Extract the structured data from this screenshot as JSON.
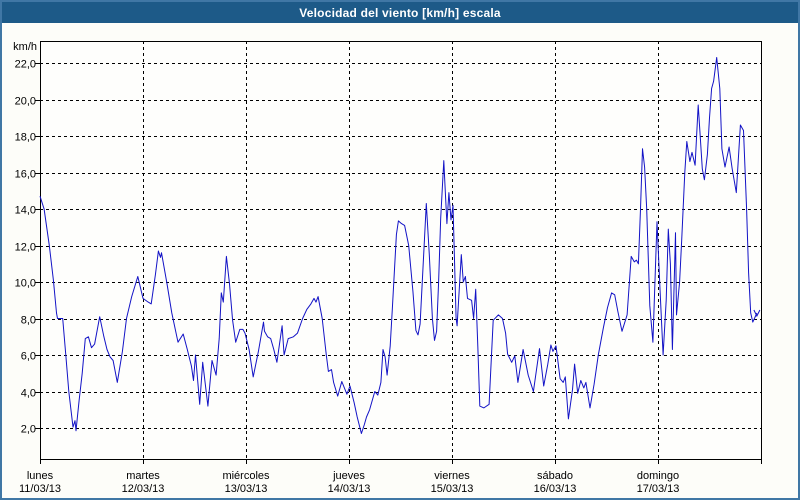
{
  "window": {
    "title": "Velocidad del viento [km/h] escala"
  },
  "colors": {
    "titlebar_bg": "#1D5A88",
    "window_border": "#4077A5",
    "content_bg": "#FDFDF9",
    "plot_bg": "#FEFEFC",
    "grid": "#000000",
    "axis": "#000000",
    "line": "#1313C6",
    "title_text": "#FFFFFF"
  },
  "chart_data": {
    "type": "line",
    "title": "Velocidad del viento [km/h] escala",
    "y_unit_label": "km/h",
    "grid": "dashed",
    "legend": "none",
    "ylim": [
      0.4,
      23.2
    ],
    "x_range_days": [
      0,
      7
    ],
    "y_ticks": [
      {
        "v": 22,
        "label": "22,0"
      },
      {
        "v": 20,
        "label": "20,0"
      },
      {
        "v": 18,
        "label": "18,0"
      },
      {
        "v": 16,
        "label": "16,0"
      },
      {
        "v": 14,
        "label": "14,0"
      },
      {
        "v": 12,
        "label": "12,0"
      },
      {
        "v": 10,
        "label": "10,0"
      },
      {
        "v": 8,
        "label": "8,0"
      },
      {
        "v": 6,
        "label": "6,0"
      },
      {
        "v": 4,
        "label": "4,0"
      },
      {
        "v": 2,
        "label": "2,0"
      }
    ],
    "x_ticks": [
      {
        "day": "lunes",
        "date": "11/03/13"
      },
      {
        "day": "martes",
        "date": "12/03/13"
      },
      {
        "day": "miércoles",
        "date": "13/03/13"
      },
      {
        "day": "jueves",
        "date": "14/03/13"
      },
      {
        "day": "viernes",
        "date": "15/03/13"
      },
      {
        "day": "sábado",
        "date": "16/03/13"
      },
      {
        "day": "domingo",
        "date": "17/03/13"
      }
    ],
    "series": [
      {
        "name": "Velocidad del viento",
        "color": "#1313C6",
        "points": [
          [
            0.0,
            14.7
          ],
          [
            0.04,
            14.0
          ],
          [
            0.09,
            12.0
          ],
          [
            0.13,
            10.1
          ],
          [
            0.16,
            8.3
          ],
          [
            0.17,
            8.0
          ],
          [
            0.22,
            8.0
          ],
          [
            0.25,
            6.0
          ],
          [
            0.28,
            4.0
          ],
          [
            0.32,
            2.05
          ],
          [
            0.34,
            2.4
          ],
          [
            0.35,
            1.85
          ],
          [
            0.38,
            3.5
          ],
          [
            0.41,
            5.0
          ],
          [
            0.44,
            6.9
          ],
          [
            0.47,
            7.0
          ],
          [
            0.5,
            6.4
          ],
          [
            0.53,
            6.6
          ],
          [
            0.58,
            8.1
          ],
          [
            0.62,
            7.0
          ],
          [
            0.65,
            6.3
          ],
          [
            0.68,
            5.9
          ],
          [
            0.71,
            5.7
          ],
          [
            0.75,
            4.5
          ],
          [
            0.8,
            6.2
          ],
          [
            0.84,
            8.0
          ],
          [
            0.89,
            9.2
          ],
          [
            0.95,
            10.3
          ],
          [
            1.0,
            9.1
          ],
          [
            1.05,
            8.9
          ],
          [
            1.08,
            8.8
          ],
          [
            1.12,
            10.4
          ],
          [
            1.15,
            11.7
          ],
          [
            1.17,
            11.35
          ],
          [
            1.18,
            11.6
          ],
          [
            1.23,
            10.0
          ],
          [
            1.28,
            8.3
          ],
          [
            1.34,
            6.7
          ],
          [
            1.39,
            7.15
          ],
          [
            1.43,
            6.3
          ],
          [
            1.47,
            5.4
          ],
          [
            1.49,
            4.6
          ],
          [
            1.51,
            6.0
          ],
          [
            1.55,
            3.3
          ],
          [
            1.58,
            5.6
          ],
          [
            1.63,
            3.2
          ],
          [
            1.67,
            5.7
          ],
          [
            1.71,
            4.9
          ],
          [
            1.74,
            6.9
          ],
          [
            1.76,
            9.4
          ],
          [
            1.78,
            8.9
          ],
          [
            1.81,
            11.4
          ],
          [
            1.84,
            9.9
          ],
          [
            1.87,
            7.9
          ],
          [
            1.9,
            6.7
          ],
          [
            1.94,
            7.4
          ],
          [
            1.97,
            7.4
          ],
          [
            1.99,
            7.2
          ],
          [
            2.03,
            6.3
          ],
          [
            2.07,
            4.8
          ],
          [
            2.12,
            6.2
          ],
          [
            2.17,
            7.8
          ],
          [
            2.18,
            7.3
          ],
          [
            2.21,
            7.0
          ],
          [
            2.24,
            6.9
          ],
          [
            2.27,
            6.3
          ],
          [
            2.3,
            5.6
          ],
          [
            2.35,
            7.6
          ],
          [
            2.37,
            6.0
          ],
          [
            2.41,
            6.9
          ],
          [
            2.46,
            7.0
          ],
          [
            2.5,
            7.2
          ],
          [
            2.55,
            8.0
          ],
          [
            2.59,
            8.5
          ],
          [
            2.63,
            8.8
          ],
          [
            2.66,
            9.1
          ],
          [
            2.68,
            8.9
          ],
          [
            2.7,
            9.2
          ],
          [
            2.74,
            8.0
          ],
          [
            2.78,
            6.0
          ],
          [
            2.8,
            5.1
          ],
          [
            2.83,
            5.2
          ],
          [
            2.85,
            4.5
          ],
          [
            2.89,
            3.75
          ],
          [
            2.93,
            4.55
          ],
          [
            2.98,
            3.85
          ],
          [
            3.01,
            4.3
          ],
          [
            3.05,
            3.4
          ],
          [
            3.08,
            2.6
          ],
          [
            3.12,
            1.7
          ],
          [
            3.15,
            2.2
          ],
          [
            3.17,
            2.6
          ],
          [
            3.2,
            3.0
          ],
          [
            3.25,
            4.0
          ],
          [
            3.28,
            3.8
          ],
          [
            3.31,
            4.5
          ],
          [
            3.33,
            6.3
          ],
          [
            3.35,
            5.9
          ],
          [
            3.37,
            4.9
          ],
          [
            3.4,
            6.5
          ],
          [
            3.42,
            8.5
          ],
          [
            3.44,
            10.5
          ],
          [
            3.46,
            12.6
          ],
          [
            3.48,
            13.35
          ],
          [
            3.51,
            13.2
          ],
          [
            3.54,
            13.1
          ],
          [
            3.58,
            12.0
          ],
          [
            3.62,
            9.5
          ],
          [
            3.65,
            7.35
          ],
          [
            3.67,
            7.1
          ],
          [
            3.69,
            7.7
          ],
          [
            3.72,
            11.0
          ],
          [
            3.75,
            14.3
          ],
          [
            3.78,
            11.5
          ],
          [
            3.81,
            8.0
          ],
          [
            3.83,
            6.8
          ],
          [
            3.85,
            7.3
          ],
          [
            3.87,
            10.0
          ],
          [
            3.89,
            13.5
          ],
          [
            3.92,
            16.65
          ],
          [
            3.93,
            15.5
          ],
          [
            3.95,
            13.2
          ],
          [
            3.97,
            14.9
          ],
          [
            3.99,
            13.4
          ],
          [
            4.01,
            14.2
          ],
          [
            4.04,
            8.0
          ],
          [
            4.05,
            7.6
          ],
          [
            4.09,
            11.5
          ],
          [
            4.11,
            10.0
          ],
          [
            4.13,
            10.3
          ],
          [
            4.15,
            9.1
          ],
          [
            4.19,
            9.0
          ],
          [
            4.21,
            8.0
          ],
          [
            4.23,
            9.6
          ],
          [
            4.25,
            6.5
          ],
          [
            4.27,
            3.2
          ],
          [
            4.31,
            3.1
          ],
          [
            4.36,
            3.3
          ],
          [
            4.4,
            7.9
          ],
          [
            4.45,
            8.2
          ],
          [
            4.49,
            8.0
          ],
          [
            4.52,
            7.2
          ],
          [
            4.54,
            6.05
          ],
          [
            4.58,
            5.6
          ],
          [
            4.61,
            5.95
          ],
          [
            4.64,
            4.5
          ],
          [
            4.69,
            6.3
          ],
          [
            4.74,
            4.9
          ],
          [
            4.79,
            4.0
          ],
          [
            4.85,
            6.35
          ],
          [
            4.89,
            4.3
          ],
          [
            4.93,
            5.5
          ],
          [
            4.96,
            6.55
          ],
          [
            4.98,
            6.2
          ],
          [
            5.01,
            6.5
          ],
          [
            5.05,
            4.7
          ],
          [
            5.08,
            4.5
          ],
          [
            5.1,
            4.8
          ],
          [
            5.13,
            2.5
          ],
          [
            5.17,
            4.1
          ],
          [
            5.19,
            5.5
          ],
          [
            5.22,
            3.9
          ],
          [
            5.25,
            4.6
          ],
          [
            5.28,
            4.2
          ],
          [
            5.3,
            4.5
          ],
          [
            5.34,
            3.1
          ],
          [
            5.38,
            4.4
          ],
          [
            5.42,
            6.0
          ],
          [
            5.47,
            7.5
          ],
          [
            5.51,
            8.6
          ],
          [
            5.55,
            9.4
          ],
          [
            5.58,
            9.3
          ],
          [
            5.61,
            8.4
          ],
          [
            5.65,
            7.3
          ],
          [
            5.7,
            8.2
          ],
          [
            5.74,
            11.4
          ],
          [
            5.77,
            11.1
          ],
          [
            5.79,
            11.2
          ],
          [
            5.81,
            11.0
          ],
          [
            5.83,
            14.0
          ],
          [
            5.85,
            17.3
          ],
          [
            5.87,
            16.3
          ],
          [
            5.89,
            14.0
          ],
          [
            5.92,
            8.7
          ],
          [
            5.95,
            6.7
          ],
          [
            5.99,
            13.3
          ],
          [
            6.02,
            9.5
          ],
          [
            6.05,
            6.0
          ],
          [
            6.08,
            9.0
          ],
          [
            6.1,
            12.9
          ],
          [
            6.12,
            11.0
          ],
          [
            6.14,
            6.3
          ],
          [
            6.17,
            12.7
          ],
          [
            6.18,
            8.2
          ],
          [
            6.21,
            10.0
          ],
          [
            6.23,
            12.3
          ],
          [
            6.26,
            16.0
          ],
          [
            6.28,
            17.7
          ],
          [
            6.31,
            16.6
          ],
          [
            6.33,
            17.1
          ],
          [
            6.36,
            16.4
          ],
          [
            6.39,
            19.7
          ],
          [
            6.41,
            18.0
          ],
          [
            6.43,
            16.2
          ],
          [
            6.45,
            15.6
          ],
          [
            6.48,
            17.0
          ],
          [
            6.5,
            19.0
          ],
          [
            6.52,
            20.6
          ],
          [
            6.54,
            21.0
          ],
          [
            6.57,
            22.3
          ],
          [
            6.6,
            20.6
          ],
          [
            6.62,
            17.3
          ],
          [
            6.65,
            16.3
          ],
          [
            6.69,
            17.4
          ],
          [
            6.72,
            16.2
          ],
          [
            6.76,
            14.9
          ],
          [
            6.8,
            18.6
          ],
          [
            6.83,
            18.3
          ],
          [
            6.86,
            14.0
          ],
          [
            6.88,
            10.5
          ],
          [
            6.9,
            8.3
          ],
          [
            6.92,
            7.8
          ],
          [
            6.96,
            8.3
          ]
        ]
      }
    ]
  }
}
